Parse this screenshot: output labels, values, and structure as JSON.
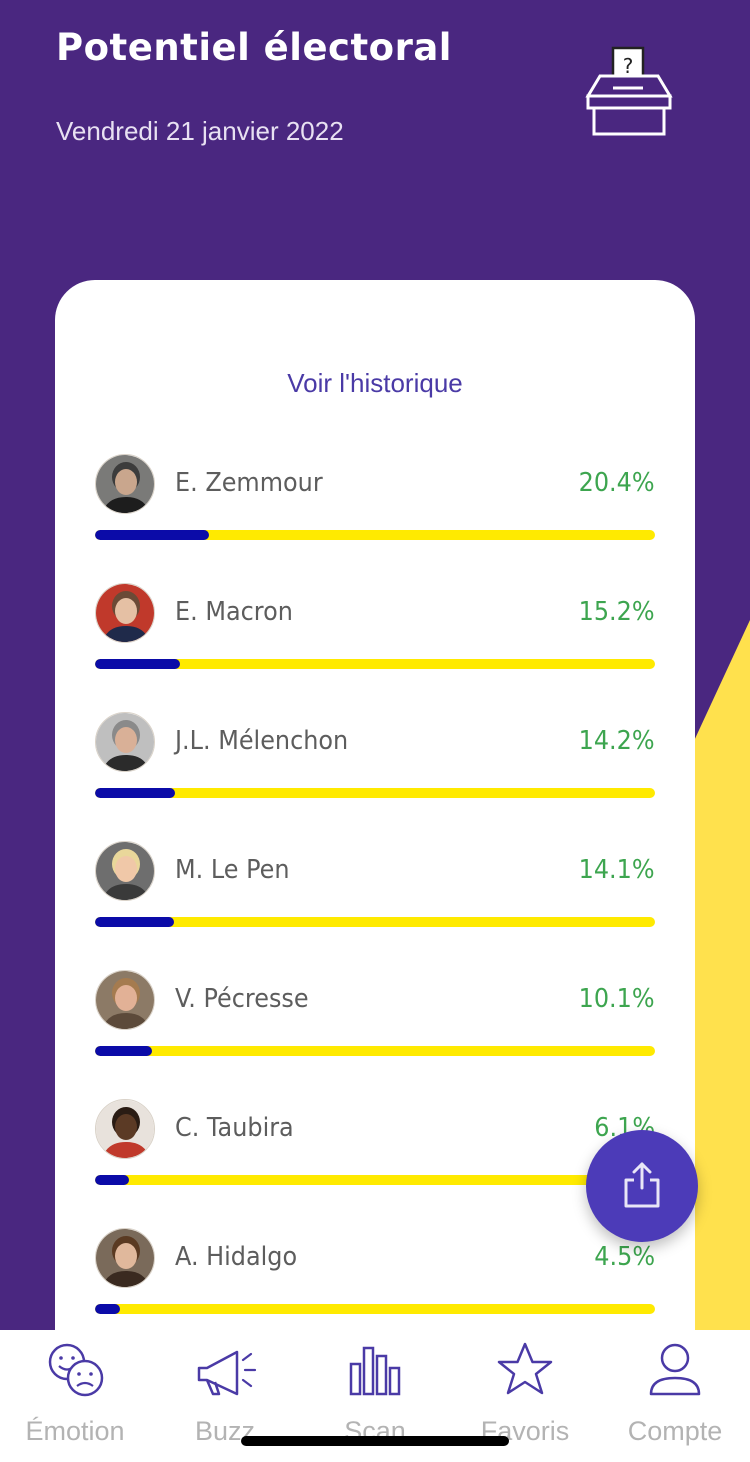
{
  "header": {
    "title": "Potentiel électoral",
    "date": "Vendredi 21 janvier 2022",
    "icon": "ballot-box-icon"
  },
  "card": {
    "history_link": "Voir l'historique",
    "candidates": [
      {
        "name": "E. Zemmour",
        "percent_label": "20.4%",
        "bar_fraction": 0.204
      },
      {
        "name": "E. Macron",
        "percent_label": "15.2%",
        "bar_fraction": 0.152
      },
      {
        "name": "J.L. Mélenchon",
        "percent_label": "14.2%",
        "bar_fraction": 0.142
      },
      {
        "name": "M. Le Pen",
        "percent_label": "14.1%",
        "bar_fraction": 0.141
      },
      {
        "name": "V. Pécresse",
        "percent_label": "10.1%",
        "bar_fraction": 0.101
      },
      {
        "name": "C. Taubira",
        "percent_label": "6.1%",
        "bar_fraction": 0.061
      },
      {
        "name": "A. Hidalgo",
        "percent_label": "4.5%",
        "bar_fraction": 0.045
      }
    ]
  },
  "fab": {
    "icon": "share-icon"
  },
  "bottom_nav": {
    "items": [
      {
        "label": "Émotion",
        "icon": "emotion-faces-icon"
      },
      {
        "label": "Buzz",
        "icon": "megaphone-icon"
      },
      {
        "label": "Scan",
        "icon": "bar-chart-icon"
      },
      {
        "label": "Favoris",
        "icon": "star-icon"
      },
      {
        "label": "Compte",
        "icon": "user-icon"
      }
    ]
  },
  "colors": {
    "background": "#4a2780",
    "accent_yellow": "#ffe14d",
    "bar_fill": "#0b0ba8",
    "bar_track": "#ffea00",
    "percent": "#3da54f",
    "link": "#4a3aa6",
    "fab": "#4c3bb8"
  }
}
